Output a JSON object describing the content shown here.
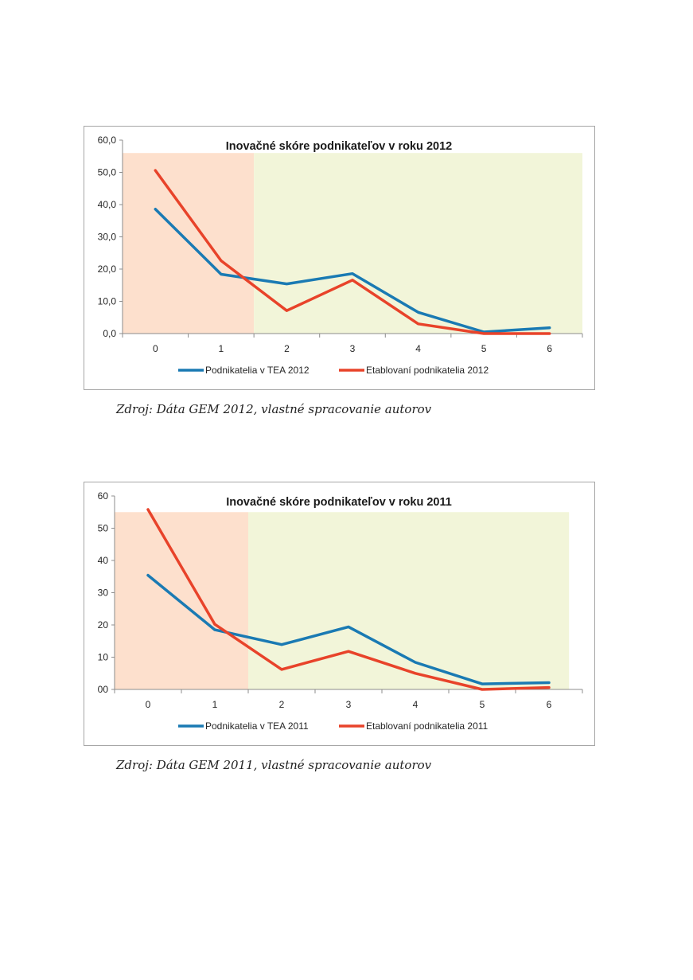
{
  "colors": {
    "series_tea": "#1a7ab3",
    "series_established": "#e8432a",
    "zone_low": "#fde0cd",
    "zone_high": "#f2f5d9",
    "axis": "#8c8c8c"
  },
  "chart_data": [
    {
      "type": "line",
      "title": "Inovačné skóre podnikateľov v roku 2012",
      "categories": [
        "0",
        "1",
        "2",
        "3",
        "4",
        "5",
        "6"
      ],
      "y_tick_labels": [
        "0,0",
        "10,0",
        "20,0",
        "30,0",
        "40,0",
        "50,0",
        "60,0"
      ],
      "ylim": [
        0,
        60
      ],
      "shaded_bands": [
        {
          "name": "low-innovation",
          "from_category": 0,
          "to_category": 1.5
        },
        {
          "name": "high-innovation",
          "from_category": 1.5,
          "to_category": 6.5
        }
      ],
      "band_top": 56,
      "series": [
        {
          "name": "Podnikatelia v TEA 2012",
          "values": [
            38.6,
            18.4,
            15.4,
            18.6,
            6.6,
            0.5,
            1.8
          ]
        },
        {
          "name": "Etablovaní podnikatelia 2012",
          "values": [
            50.6,
            22.6,
            7.1,
            16.6,
            3.0,
            0.0,
            0.0
          ]
        }
      ],
      "legend_position": "bottom"
    },
    {
      "type": "line",
      "title": "Inovačné skóre podnikateľov v roku 2011",
      "categories": [
        "0",
        "1",
        "2",
        "3",
        "4",
        "5",
        "6"
      ],
      "y_tick_labels": [
        "00",
        "10",
        "20",
        "30",
        "40",
        "50",
        "60"
      ],
      "ylim": [
        0,
        60
      ],
      "shaded_bands": [
        {
          "name": "low-innovation",
          "from_category": 0,
          "to_category": 1.5
        },
        {
          "name": "high-innovation",
          "from_category": 1.5,
          "to_category": 6.3
        }
      ],
      "band_top": 55,
      "series": [
        {
          "name": "Podnikatelia v TEA 2011",
          "values": [
            35.4,
            18.5,
            13.9,
            19.4,
            8.4,
            1.7,
            2.1
          ]
        },
        {
          "name": "Etablovaní podnikatelia 2011",
          "values": [
            55.8,
            20.2,
            6.2,
            11.8,
            5.0,
            0.0,
            0.6
          ]
        }
      ],
      "legend_position": "bottom"
    }
  ],
  "captions": [
    "Zdroj: Dáta GEM 2012, vlastné spracovanie autorov",
    "Zdroj: Dáta GEM 2011, vlastné spracovanie autorov"
  ]
}
